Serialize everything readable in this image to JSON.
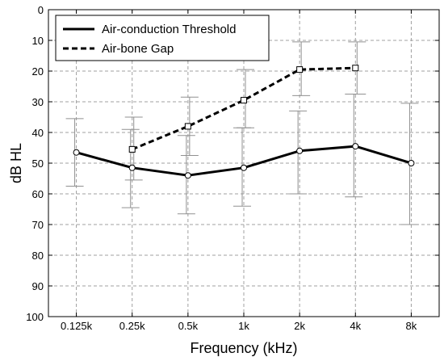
{
  "chart_data": {
    "type": "line",
    "xlabel": "Frequency (kHz)",
    "ylabel": "dB HL",
    "categories": [
      "0.125k",
      "0.25k",
      "0.5k",
      "1k",
      "2k",
      "4k",
      "8k"
    ],
    "ylim": [
      0,
      100
    ],
    "y_inverted": true,
    "yticks": [
      "0",
      "10",
      "20",
      "30",
      "40",
      "50",
      "60",
      "70",
      "80",
      "90",
      "100"
    ],
    "grid": true,
    "legend_position": "top-left",
    "series": [
      {
        "name": "Air-conduction Threshold",
        "style": "solid",
        "marker": "circle",
        "values": [
          46.5,
          51.5,
          54,
          51.5,
          46,
          44.5,
          50
        ],
        "error_low": [
          35.5,
          39,
          41,
          38.5,
          33,
          27.5,
          30.5
        ],
        "error_high": [
          57.5,
          64.5,
          66.5,
          64,
          60,
          61,
          70
        ]
      },
      {
        "name": "Air-bone Gap",
        "style": "dashed",
        "marker": "square",
        "values": [
          null,
          45.5,
          38,
          29.5,
          19.5,
          19,
          null
        ],
        "error_low": [
          null,
          35,
          28.5,
          19.5,
          10.5,
          10.5,
          null
        ],
        "error_high": [
          null,
          55.5,
          47.5,
          38.5,
          28,
          27.5,
          null
        ]
      }
    ],
    "colors": {
      "series": "#000000",
      "error_bars": "#909090",
      "grid": "#a0a0a0"
    }
  }
}
